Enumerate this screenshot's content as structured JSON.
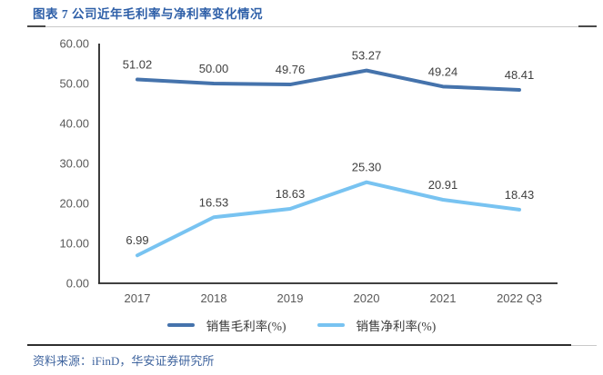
{
  "title": "图表 7 公司近年毛利率与净利率变化情况",
  "source": "资料来源：iFinD，华安证券研究所",
  "colors": {
    "title_text": "#2e5fa8",
    "source_text": "#40659f",
    "axis": "#262626",
    "tick_label": "#595959",
    "data_label": "#3f3f3f",
    "rule_gray": "#c9c9c9",
    "rule_dark": "#404040",
    "gross_margin_line": "#4573ac",
    "net_margin_line": "#78c3f1"
  },
  "chart_data": {
    "type": "line",
    "title": "",
    "xlabel": "",
    "ylabel": "",
    "categories": [
      "2017",
      "2018",
      "2019",
      "2020",
      "2021",
      "2022 Q3"
    ],
    "series": [
      {
        "name": "销售毛利率(%)",
        "color": "#4573ac",
        "values": [
          51.02,
          50.0,
          49.76,
          53.27,
          49.24,
          48.41
        ]
      },
      {
        "name": "销售净利率(%)",
        "color": "#78c3f1",
        "values": [
          6.99,
          16.53,
          18.63,
          25.3,
          20.91,
          18.43
        ]
      }
    ],
    "ylim": [
      0,
      60
    ],
    "ytick_labels": [
      "0.00",
      "10.00",
      "20.00",
      "30.00",
      "40.00",
      "50.00",
      "60.00"
    ],
    "grid": false,
    "data_labels": true,
    "legend_position": "bottom"
  }
}
